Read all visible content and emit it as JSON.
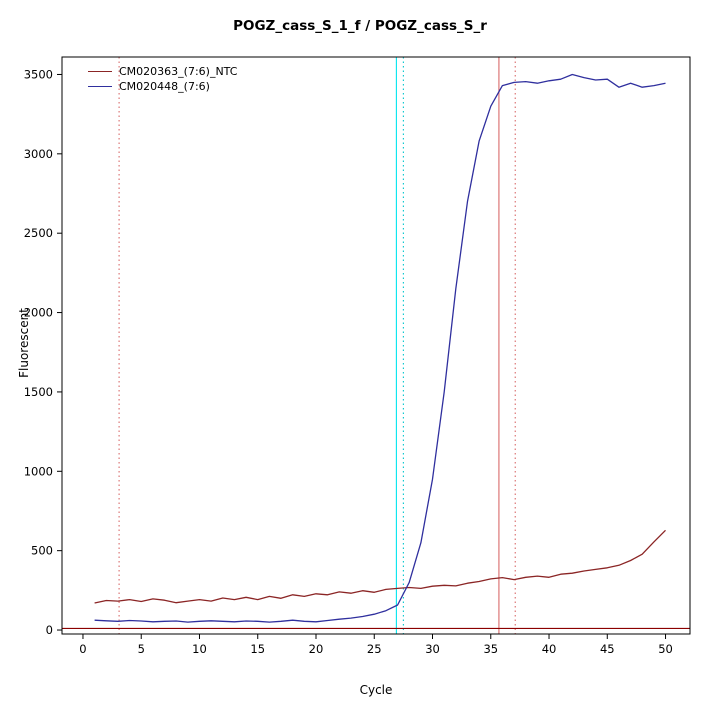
{
  "title": "POGZ_cass_S_1_f / POGZ_cass_S_r",
  "chart_data": {
    "type": "line",
    "title": "POGZ_cass_S_1_f / POGZ_cass_S_r",
    "xlabel": "Cycle",
    "ylabel": "Fluorescent",
    "xlim": [
      -1.8,
      52.1
    ],
    "ylim": [
      -25,
      3610
    ],
    "x_ticks": [
      0,
      5,
      10,
      15,
      20,
      25,
      30,
      35,
      40,
      45,
      50
    ],
    "y_ticks": [
      0,
      500,
      1000,
      1500,
      2000,
      2500,
      3000,
      3500
    ],
    "grid": false,
    "legend_position": "top-left",
    "x": [
      1,
      2,
      3,
      4,
      5,
      6,
      7,
      8,
      9,
      10,
      11,
      12,
      13,
      14,
      15,
      16,
      17,
      18,
      19,
      20,
      21,
      22,
      23,
      24,
      25,
      26,
      27,
      28,
      29,
      30,
      31,
      32,
      33,
      34,
      35,
      36,
      37,
      38,
      39,
      40,
      41,
      42,
      43,
      44,
      45,
      46,
      47,
      48,
      49,
      50
    ],
    "series": [
      {
        "name": "CM020363_(7:6)_NTC",
        "color": "#8b2525",
        "values": [
          170,
          186,
          182,
          192,
          180,
          196,
          188,
          172,
          182,
          192,
          182,
          202,
          192,
          206,
          192,
          212,
          200,
          222,
          212,
          228,
          222,
          240,
          232,
          248,
          238,
          256,
          262,
          268,
          262,
          276,
          282,
          278,
          295,
          306,
          322,
          330,
          318,
          332,
          340,
          332,
          352,
          358,
          372,
          382,
          392,
          408,
          438,
          478,
          555,
          628
        ]
      },
      {
        "name": "CM020448_(7:6)",
        "color": "#2f2f9e",
        "values": [
          62,
          58,
          55,
          60,
          57,
          52,
          55,
          57,
          50,
          55,
          58,
          55,
          52,
          57,
          55,
          50,
          55,
          62,
          55,
          52,
          60,
          68,
          75,
          85,
          100,
          122,
          158,
          300,
          550,
          950,
          1500,
          2150,
          2700,
          3080,
          3300,
          3430,
          3450,
          3455,
          3445,
          3460,
          3470,
          3500,
          3480,
          3465,
          3470,
          3420,
          3445,
          3420,
          3430,
          3445
        ]
      }
    ],
    "reference_lines": [
      {
        "orient": "v",
        "pos": 3.1,
        "color": "#d96a6a",
        "dash": true
      },
      {
        "orient": "v",
        "pos": 26.9,
        "color": "#00e5ee",
        "dash": false
      },
      {
        "orient": "v",
        "pos": 27.5,
        "color": "#00c5cd",
        "dash": true
      },
      {
        "orient": "v",
        "pos": 35.7,
        "color": "#d96a6a",
        "dash": false
      },
      {
        "orient": "v",
        "pos": 37.1,
        "color": "#d96a6a",
        "dash": true
      },
      {
        "orient": "h",
        "pos": 10,
        "color": "#8b0000",
        "dash": false
      }
    ]
  }
}
